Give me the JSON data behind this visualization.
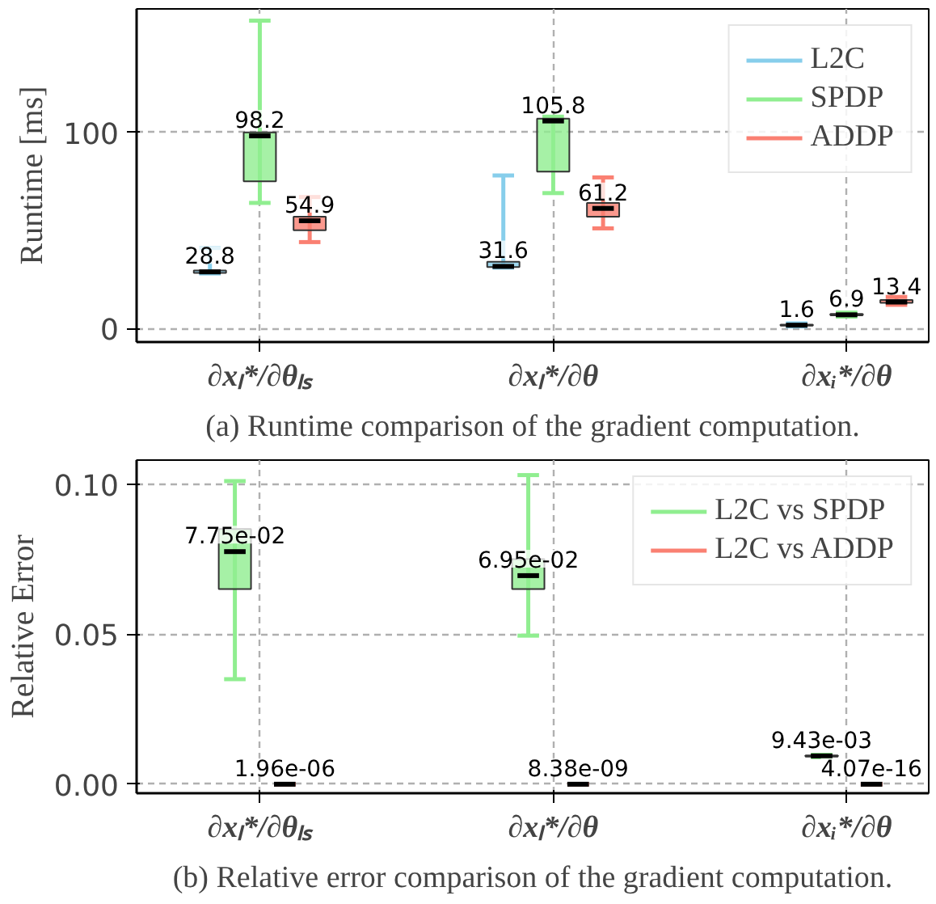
{
  "chart_data": [
    {
      "type": "box",
      "title": "(a) Runtime comparison of the gradient computation.",
      "ylabel": "Runtime [ms]",
      "categories": [
        "∂xₗ*/∂θₗₛ",
        "∂xₗ*/∂θ",
        "∂xᵢ*/∂θ"
      ],
      "ylim": [
        -7,
        163
      ],
      "yticks": [
        0,
        100
      ],
      "grid": true,
      "legend": "top right",
      "series": [
        {
          "name": "L2C",
          "color": "#87ceeb",
          "value_labels": [
            "28.8",
            "31.6",
            "1.6"
          ],
          "boxes": [
            {
              "low": 28,
              "q1": 28.3,
              "median": 28.8,
              "q3": 29.5,
              "high": 41
            },
            {
              "low": 31,
              "q1": 31.3,
              "median": 31.6,
              "q3": 34,
              "high": 78
            },
            {
              "low": 1,
              "q1": 1.4,
              "median": 1.6,
              "q3": 1.9,
              "high": 2.5
            }
          ]
        },
        {
          "name": "SPDP",
          "color": "#90ee90",
          "value_labels": [
            "98.2",
            "105.8",
            "6.9"
          ],
          "boxes": [
            {
              "low": 64,
              "q1": 75,
              "median": 98.2,
              "q3": 100,
              "high": 157
            },
            {
              "low": 69,
              "q1": 80,
              "median": 105.8,
              "q3": 107,
              "high": 108
            },
            {
              "low": 6,
              "q1": 6.6,
              "median": 6.9,
              "q3": 7.3,
              "high": 8
            }
          ]
        },
        {
          "name": "ADDP",
          "color": "#fa8072",
          "value_labels": [
            "54.9",
            "61.2",
            "13.4"
          ],
          "boxes": [
            {
              "low": 44,
              "q1": 50,
              "median": 54.9,
              "q3": 57,
              "high": 67
            },
            {
              "low": 51,
              "q1": 57,
              "median": 61.2,
              "q3": 64,
              "high": 77
            },
            {
              "low": 12,
              "q1": 13,
              "median": 13.4,
              "q3": 14.5,
              "high": 16
            }
          ]
        }
      ]
    },
    {
      "type": "box",
      "title": "(b) Relative error comparison of the gradient computation.",
      "ylabel": "Relative Error",
      "categories": [
        "∂xₗ*/∂θₗₛ",
        "∂xₗ*/∂θ",
        "∂xᵢ*/∂θ"
      ],
      "ylim": [
        -0.003,
        0.108
      ],
      "yticks": [
        {
          "value": 0,
          "label": "0.00"
        },
        {
          "value": 0.05,
          "label": "0.05"
        },
        {
          "value": 0.1,
          "label": "0.10"
        }
      ],
      "grid": true,
      "legend": "top right",
      "series": [
        {
          "name": "L2C vs SPDP",
          "color": "#90ee90",
          "value_labels": [
            "7.75e-02",
            "6.95e-02",
            "9.43e-03"
          ],
          "boxes": [
            {
              "low": 0.035,
              "q1": 0.065,
              "median": 0.0775,
              "q3": 0.085,
              "high": 0.101
            },
            {
              "low": 0.0495,
              "q1": 0.065,
              "median": 0.0695,
              "q3": 0.075,
              "high": 0.103
            },
            {
              "low": 0.009,
              "q1": 0.0092,
              "median": 0.00943,
              "q3": 0.0096,
              "high": 0.0098
            }
          ]
        },
        {
          "name": "L2C vs ADDP",
          "color": "#fa8072",
          "value_labels": [
            "1.96e-06",
            "8.38e-09",
            "4.07e-16"
          ],
          "boxes": [
            {
              "low": 1.96e-06,
              "q1": 1.96e-06,
              "median": 1.96e-06,
              "q3": 1.96e-06,
              "high": 1.96e-06
            },
            {
              "low": 8.38e-09,
              "q1": 8.38e-09,
              "median": 8.38e-09,
              "q3": 8.38e-09,
              "high": 8.38e-09
            },
            {
              "low": 4.07e-16,
              "q1": 4.07e-16,
              "median": 4.07e-16,
              "q3": 4.07e-16,
              "high": 4.07e-16
            }
          ]
        }
      ]
    }
  ]
}
